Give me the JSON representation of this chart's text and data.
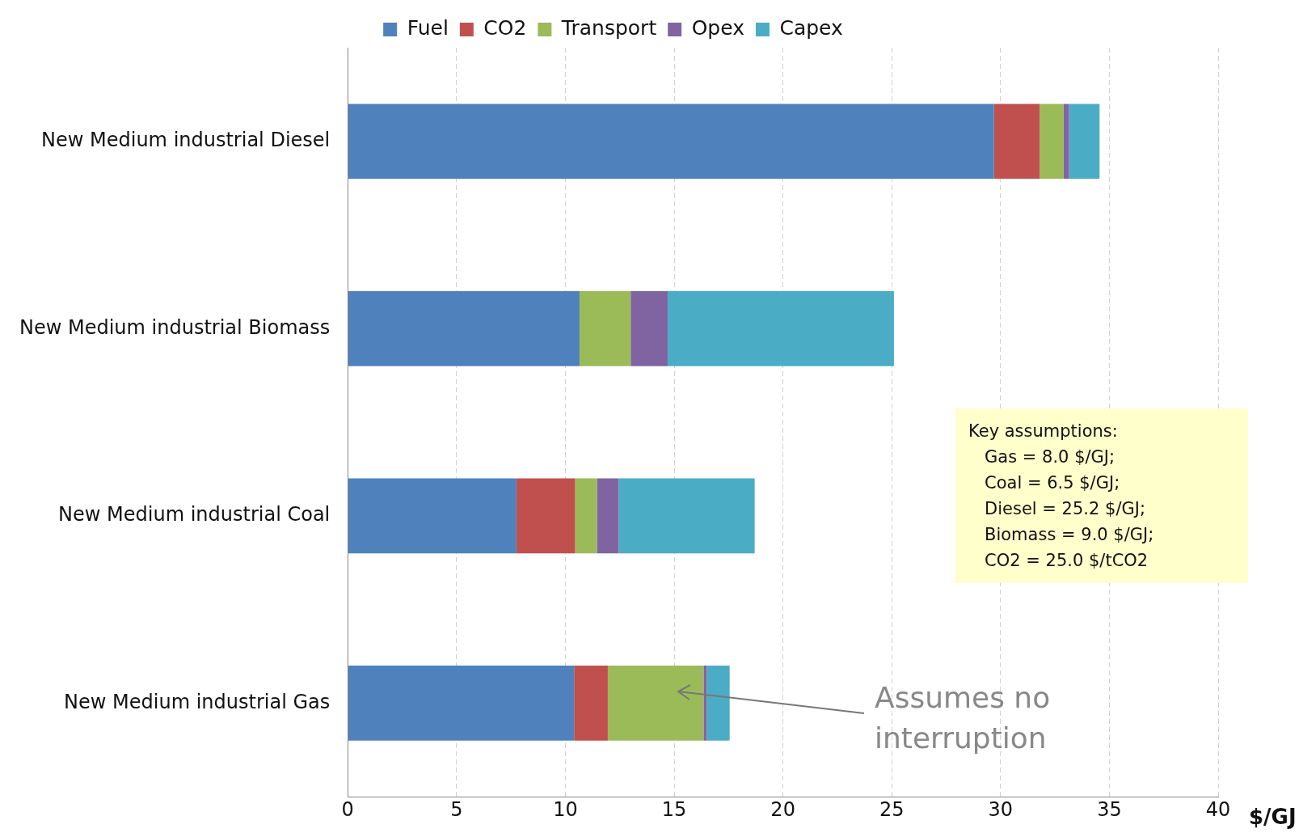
{
  "chart_data": {
    "type": "bar",
    "orientation": "horizontal",
    "stacked": true,
    "categories": [
      "New Medium industrial Diesel",
      "New Medium industrial Biomass",
      "New Medium industrial Coal",
      "New Medium industrial Gas"
    ],
    "series": [
      {
        "name": "Fuel",
        "color": "#4f81bd",
        "values": [
          29.7,
          10.65,
          7.75,
          10.4
        ]
      },
      {
        "name": "CO2",
        "color": "#c0504d",
        "values": [
          2.1,
          0,
          2.7,
          1.55
        ]
      },
      {
        "name": "Transport",
        "color": "#9bbb59",
        "values": [
          1.1,
          2.35,
          1.0,
          4.4
        ]
      },
      {
        "name": "Opex",
        "color": "#8064a2",
        "values": [
          0.25,
          1.7,
          1.0,
          0.15
        ]
      },
      {
        "name": "Capex",
        "color": "#4bacc6",
        "values": [
          1.4,
          10.4,
          6.25,
          1.05
        ]
      }
    ],
    "xlim": [
      0,
      40
    ],
    "xticks": [
      0,
      5,
      10,
      15,
      20,
      25,
      30,
      35,
      40
    ],
    "xlabel": "$/GJ",
    "grid": "x",
    "legend": "top",
    "annotations": [
      "Assumes no interruption",
      "Key assumptions:\n   Gas = 8.0 $/GJ;\n   Coal = 6.5 $/GJ;\n   Diesel = 25.2 $/GJ;\n   Biomass = 9.0 $/GJ;\n   CO2 = 25.0 $/tCO2"
    ]
  }
}
